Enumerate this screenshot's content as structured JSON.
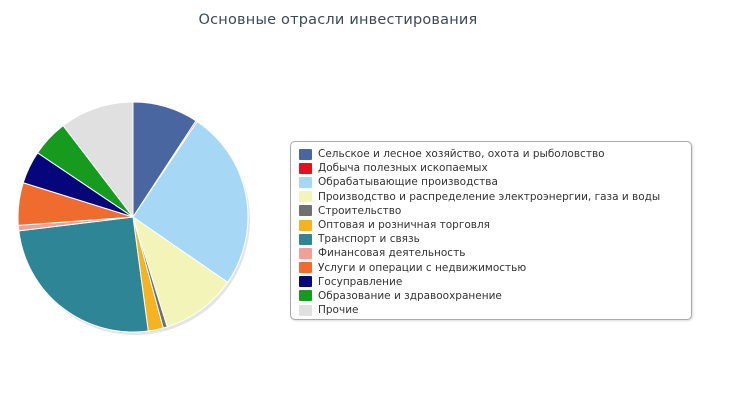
{
  "chart_data": {
    "type": "pie",
    "title": "Основные отрасли инвестирования",
    "legend_position": "right",
    "series": [
      {
        "name": "Сельское и лесное хозяйство, охота и рыболовство",
        "value": 9.6,
        "color": "#4a66a0"
      },
      {
        "name": "Добыча полезных ископаемых",
        "value": 0.2,
        "color": "#e8101e"
      },
      {
        "name": "Обрабатывающие производства",
        "value": 26.2,
        "color": "#a6d8f6"
      },
      {
        "name": "Производство и распределение электроэнергии, газа и воды",
        "value": 11.0,
        "color": "#f3f5b8"
      },
      {
        "name": "Строительство",
        "value": 0.6,
        "color": "#707070"
      },
      {
        "name": "Оптовая и розничная торговля",
        "value": 2.2,
        "color": "#f5b221"
      },
      {
        "name": "Транспорт и связь",
        "value": 26.2,
        "color": "#2e8596"
      },
      {
        "name": "Финансовая деятельность",
        "value": 0.8,
        "color": "#f0a09a"
      },
      {
        "name": "Услуги и операции с недвижимостью",
        "value": 6.2,
        "color": "#f06c2e"
      },
      {
        "name": "Госуправление",
        "value": 4.8,
        "color": "#06067a"
      },
      {
        "name": "Образование и здравоохранение",
        "value": 5.4,
        "color": "#169b1e"
      },
      {
        "name": "Прочие",
        "value": 10.8,
        "color": "#e0e0e0"
      }
    ]
  }
}
